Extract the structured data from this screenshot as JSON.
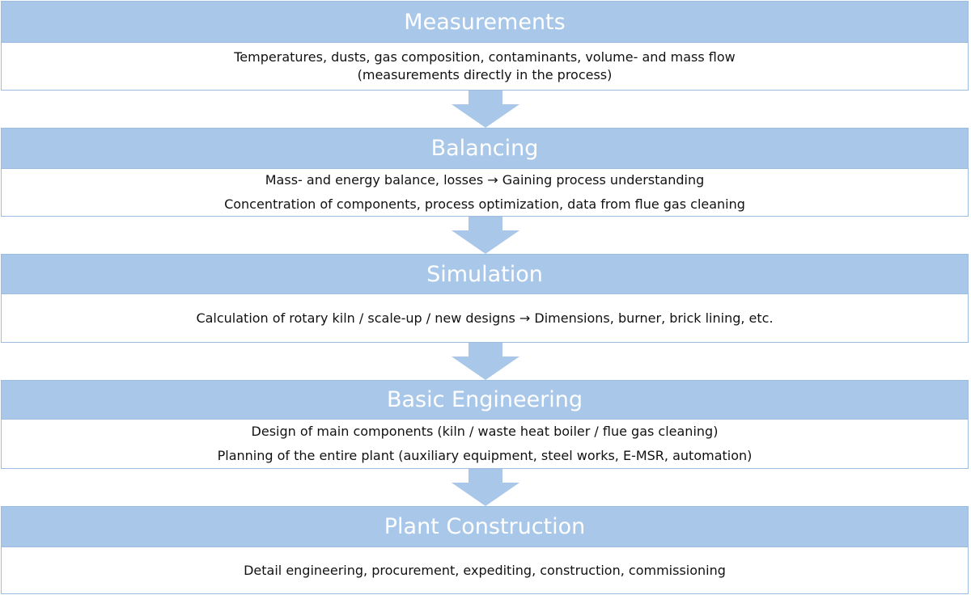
{
  "accent_color": "#a9c8e9",
  "steps": [
    {
      "title": "Measurements",
      "lines": [
        "Temperatures, dusts, gas composition, contaminants, volume- and mass flow",
        "(measurements directly in the process)"
      ]
    },
    {
      "title": "Balancing",
      "lines": [
        "Mass- and energy balance, losses → Gaining process understanding",
        "Concentration of components, process optimization, data from flue gas cleaning"
      ]
    },
    {
      "title": "Simulation",
      "lines": [
        "Calculation of rotary kiln / scale-up / new designs → Dimensions, burner, brick lining, etc."
      ]
    },
    {
      "title": "Basic Engineering",
      "lines": [
        "Design of main components (kiln / waste heat boiler / flue gas cleaning)",
        "Planning of the entire plant (auxiliary equipment, steel works, E-MSR, automation)"
      ]
    },
    {
      "title": "Plant Construction",
      "lines": [
        "Detail engineering, procurement, expediting, construction, commissioning"
      ]
    }
  ]
}
